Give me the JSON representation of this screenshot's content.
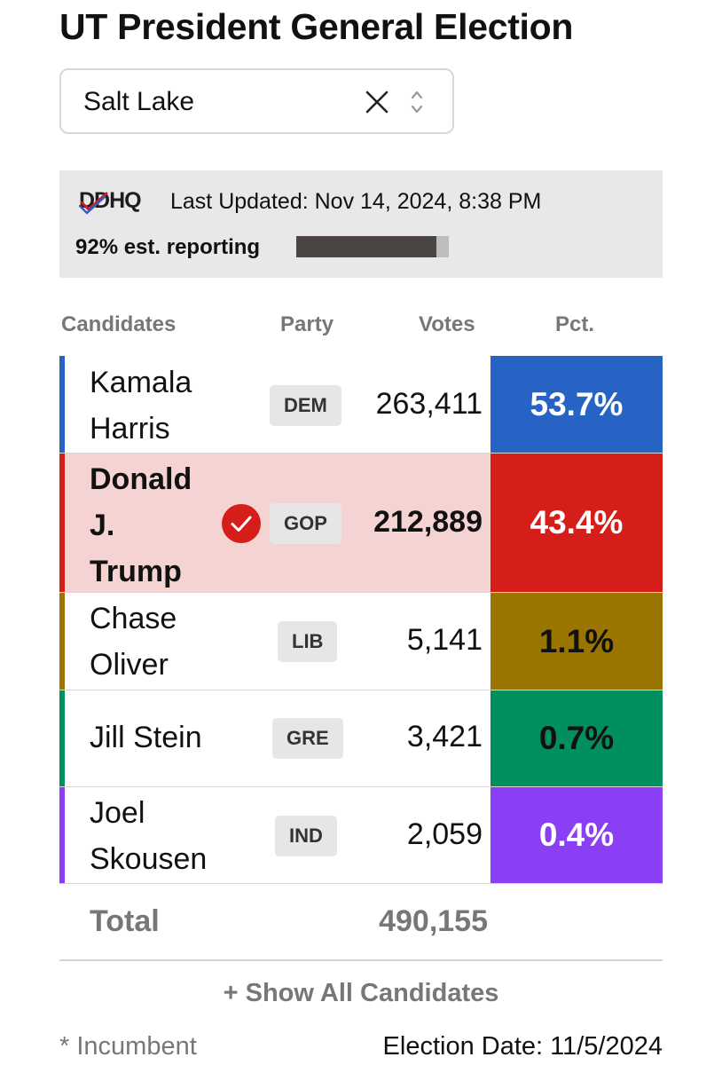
{
  "title": "UT President General Election",
  "county_select": {
    "value": "Salt Lake"
  },
  "source": {
    "logo_text": "DDHQ",
    "last_updated": "Last Updated: Nov 14, 2024, 8:38 PM",
    "reporting_label": "92% est. reporting",
    "reporting_fraction": 0.92
  },
  "columns": {
    "candidates": "Candidates",
    "party": "Party",
    "votes": "Votes",
    "pct": "Pct."
  },
  "candidates": [
    {
      "name_lines": [
        "Kamala",
        "Harris",
        ""
      ],
      "party": "DEM",
      "votes": "263,411",
      "pct": "53.7%",
      "color": "#2763c4",
      "pct_text_color": "#ffffff",
      "winner": false
    },
    {
      "name_lines": [
        "Donald",
        "J.",
        "Trump"
      ],
      "party": "GOP",
      "votes": "212,889",
      "pct": "43.4%",
      "color": "#d51e1a",
      "pct_text_color": "#ffffff",
      "winner": true
    },
    {
      "name_lines": [
        "Chase",
        "Oliver",
        ""
      ],
      "party": "LIB",
      "votes": "5,141",
      "pct": "1.1%",
      "color": "#9a7500",
      "pct_text_color": "#111111",
      "winner": false
    },
    {
      "name_lines": [
        "Jill Stein",
        "",
        ""
      ],
      "party": "GRE",
      "votes": "3,421",
      "pct": "0.7%",
      "color": "#028f5e",
      "pct_text_color": "#111111",
      "winner": false
    },
    {
      "name_lines": [
        "Joel",
        "Skousen",
        ""
      ],
      "party": "IND",
      "votes": "2,059",
      "pct": "0.4%",
      "color": "#8b3ff5",
      "pct_text_color": "#ffffff",
      "winner": false
    }
  ],
  "total": {
    "label": "Total",
    "votes": "490,155"
  },
  "show_all_label": "+ Show All Candidates",
  "footer": {
    "incumbent_note": "* Incumbent",
    "election_date": "Election Date: 11/5/2024"
  },
  "icons": {
    "clear": "close-icon",
    "select": "updown-chevron-icon",
    "winner": "checkmark-circle-icon"
  }
}
